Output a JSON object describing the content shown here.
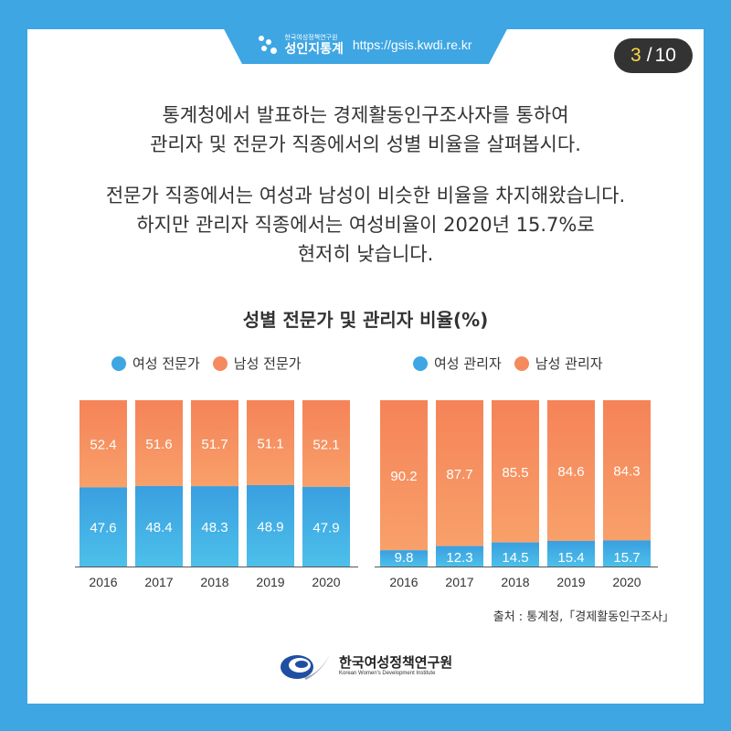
{
  "header": {
    "org_small": "한국여성정책연구원",
    "brand": "성인지통계",
    "url": "https://gsis.kwdi.re.kr"
  },
  "page": {
    "current": "3",
    "total": "10"
  },
  "intro": {
    "line1": "통계청에서 발표하는 경제활동인구조사자를 통하여",
    "line2": "관리자 및 전문가 직종에서의 성별 비율을 살펴봅시다.",
    "line3": "전문가 직종에서는 여성과 남성이 비슷한 비율을 차지해왔습니다.",
    "line4": "하지만 관리자 직종에서는 여성비율이 2020년 15.7%로",
    "line5": "현저히 낮습니다."
  },
  "colors": {
    "female": "#3ea6e3",
    "male": "#f58a5e",
    "background": "#3ea6e3"
  },
  "chart_data": [
    {
      "type": "bar",
      "stacked": true,
      "title": "성별 전문가 및 관리자 비율(%)",
      "categories": [
        "2016",
        "2017",
        "2018",
        "2019",
        "2020"
      ],
      "series": [
        {
          "name": "여성 전문가",
          "values": [
            47.6,
            48.4,
            48.3,
            48.9,
            47.9
          ]
        },
        {
          "name": "남성 전문가",
          "values": [
            52.4,
            51.6,
            51.7,
            51.1,
            52.1
          ]
        }
      ],
      "ylim": [
        0,
        100
      ],
      "legend": "top"
    },
    {
      "type": "bar",
      "stacked": true,
      "categories": [
        "2016",
        "2017",
        "2018",
        "2019",
        "2020"
      ],
      "series": [
        {
          "name": "여성 관리자",
          "values": [
            9.8,
            12.3,
            14.5,
            15.4,
            15.7
          ]
        },
        {
          "name": "남성 관리자",
          "values": [
            90.2,
            87.7,
            85.5,
            84.6,
            84.3
          ]
        }
      ],
      "ylim": [
        0,
        100
      ],
      "legend": "top"
    }
  ],
  "source": "출처 : 통계청,「경제활동인구조사」",
  "footer": {
    "org_ko": "한국여성정책연구원",
    "org_en": "Korean Women's Development Institute"
  }
}
